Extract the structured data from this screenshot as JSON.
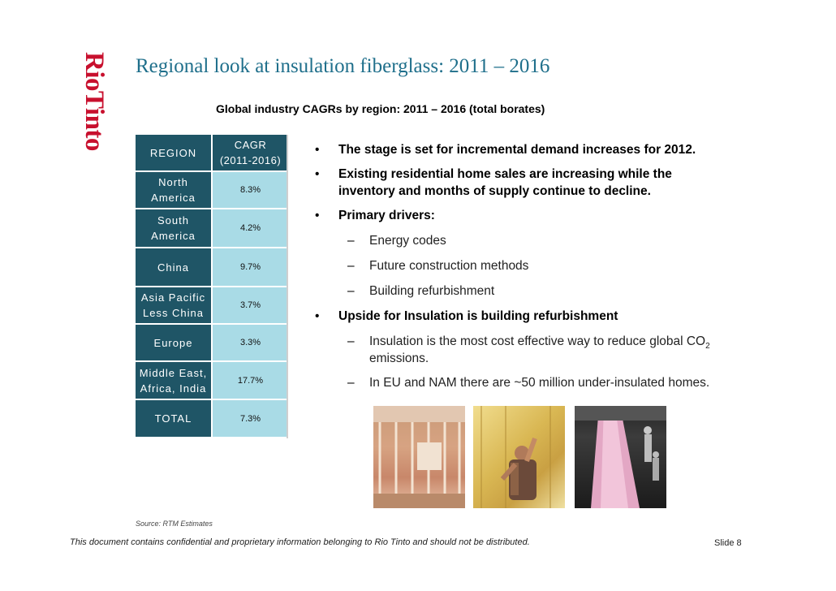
{
  "brand": {
    "logo_text": "RioTinto",
    "accent": "#c8102e",
    "title_color": "#1f6f8b"
  },
  "slide": {
    "title": "Regional look at insulation fiberglass: 2011 – 2016",
    "subtitle": "Global industry CAGRs by region:  2011 – 2016 (total borates)"
  },
  "table": {
    "header": {
      "region": "REGION",
      "cagr_line1": "CAGR",
      "cagr_line2": "(2011-2016)"
    },
    "rows": [
      {
        "region_line1": "North",
        "region_line2": "America",
        "cagr": "8.3%"
      },
      {
        "region_line1": "South",
        "region_line2": "America",
        "cagr": "4.2%"
      },
      {
        "region_line1": "China",
        "region_line2": "",
        "cagr": "9.7%"
      },
      {
        "region_line1": "Asia Pacific",
        "region_line2": "Less China",
        "cagr": "3.7%"
      },
      {
        "region_line1": "Europe",
        "region_line2": "",
        "cagr": "3.3%"
      },
      {
        "region_line1": "Middle East,",
        "region_line2": "Africa, India",
        "cagr": "17.7%"
      },
      {
        "region_line1": "TOTAL",
        "region_line2": "",
        "cagr": "7.3%"
      }
    ],
    "colors": {
      "header_bg": "#1f5566",
      "value_bg": "#a9dbe6"
    }
  },
  "bullets": {
    "b1": "The stage is set for incremental demand increases for 2012.",
    "b2_line1": "Existing residential home sales are increasing while the",
    "b2_line2": "inventory and months of supply continue to decline.",
    "b3": "Primary drivers:",
    "b3_s1": "Energy codes",
    "b3_s2": "Future construction methods",
    "b3_s3": "Building refurbishment",
    "b4": "Upside for Insulation is building refurbishment",
    "b4_s1_line1": "Insulation is the most cost effective way to reduce global CO",
    "b4_s1_sub": "2",
    "b4_s1_line2": "emissions.",
    "b4_s2": "In EU and NAM there are ~50 million under-insulated homes.",
    "bullet_glyph": "•",
    "dash_glyph": "–"
  },
  "footer": {
    "source": "Source:  RTM Estimates",
    "confidential": "This document contains confidential and proprietary information belonging to Rio Tinto and should not be distributed.",
    "slide_number": "Slide 8"
  }
}
